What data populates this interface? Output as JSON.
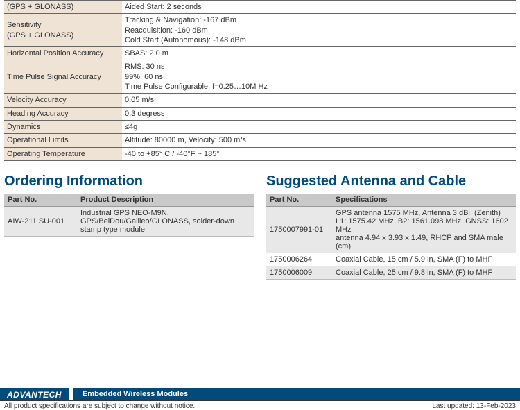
{
  "spec_table": {
    "rows": [
      {
        "label": "(GPS + GLONASS)",
        "value": "Aided Start: 2 seconds"
      },
      {
        "label": "Sensitivity\n(GPS + GLONASS)",
        "value": "Tracking & Navigation: -167 dBm\nReacquisition: -160 dBm\nCold Start (Autonomous): -148 dBm"
      },
      {
        "label": "Horizontal Position Accuracy",
        "value": "SBAS: 2.0 m"
      },
      {
        "label": "Time Pulse Signal Accuracy",
        "value": "RMS: 30 ns\n99%: 60 ns\nTime Pulse Configurable: f=0.25…10M Hz"
      },
      {
        "label": "Velocity Accuracy",
        "value": "0.05 m/s"
      },
      {
        "label": "Heading Accuracy",
        "value": "0.3 degress"
      },
      {
        "label": "Dynamics",
        "value": "≤4g"
      },
      {
        "label": "Operational Limits",
        "value": "Altitude: 80000 m, Velocity: 500 m/s"
      },
      {
        "label": "Operating Temperature",
        "value": "-40 to +85° C / -40°F ~ 185°"
      }
    ]
  },
  "ordering": {
    "heading": "Ordering Information",
    "columns": [
      "Part No.",
      "Product Description"
    ],
    "rows": [
      {
        "partno": "AIW-211 SU-001",
        "desc": "Industrial GPS NEO-M9N, GPS/BeiDou/Galileo/GLONASS, solder-down stamp type module",
        "shade": true
      }
    ]
  },
  "suggested": {
    "heading": "Suggested Antenna and Cable",
    "columns": [
      "Part No.",
      "Specifications"
    ],
    "rows": [
      {
        "partno": "1750007991-01",
        "desc": "GPS antenna 1575 MHz, Antenna 3 dBi, (Zenith)\nL1: 1575.42 MHz, B2: 1561.098 MHz, GNSS: 1602 MHz\nantenna 4.94 x 3.93 x 1.49, RHCP and SMA male (cm)",
        "shade": true
      },
      {
        "partno": "1750006264",
        "desc": "Coaxial Cable, 15 cm / 5.9 in, SMA (F) to MHF",
        "shade": false
      },
      {
        "partno": "1750006009",
        "desc": "Coaxial Cable, 25 cm / 9.8 in, SMA (F) to MHF",
        "shade": true
      }
    ]
  },
  "footer": {
    "logo": "ADVANTECH",
    "title": "Embedded Wireless Modules",
    "notice": "All product specifications are subject to change without notice.",
    "updated": "Last updated: 13-Feb-2023"
  }
}
